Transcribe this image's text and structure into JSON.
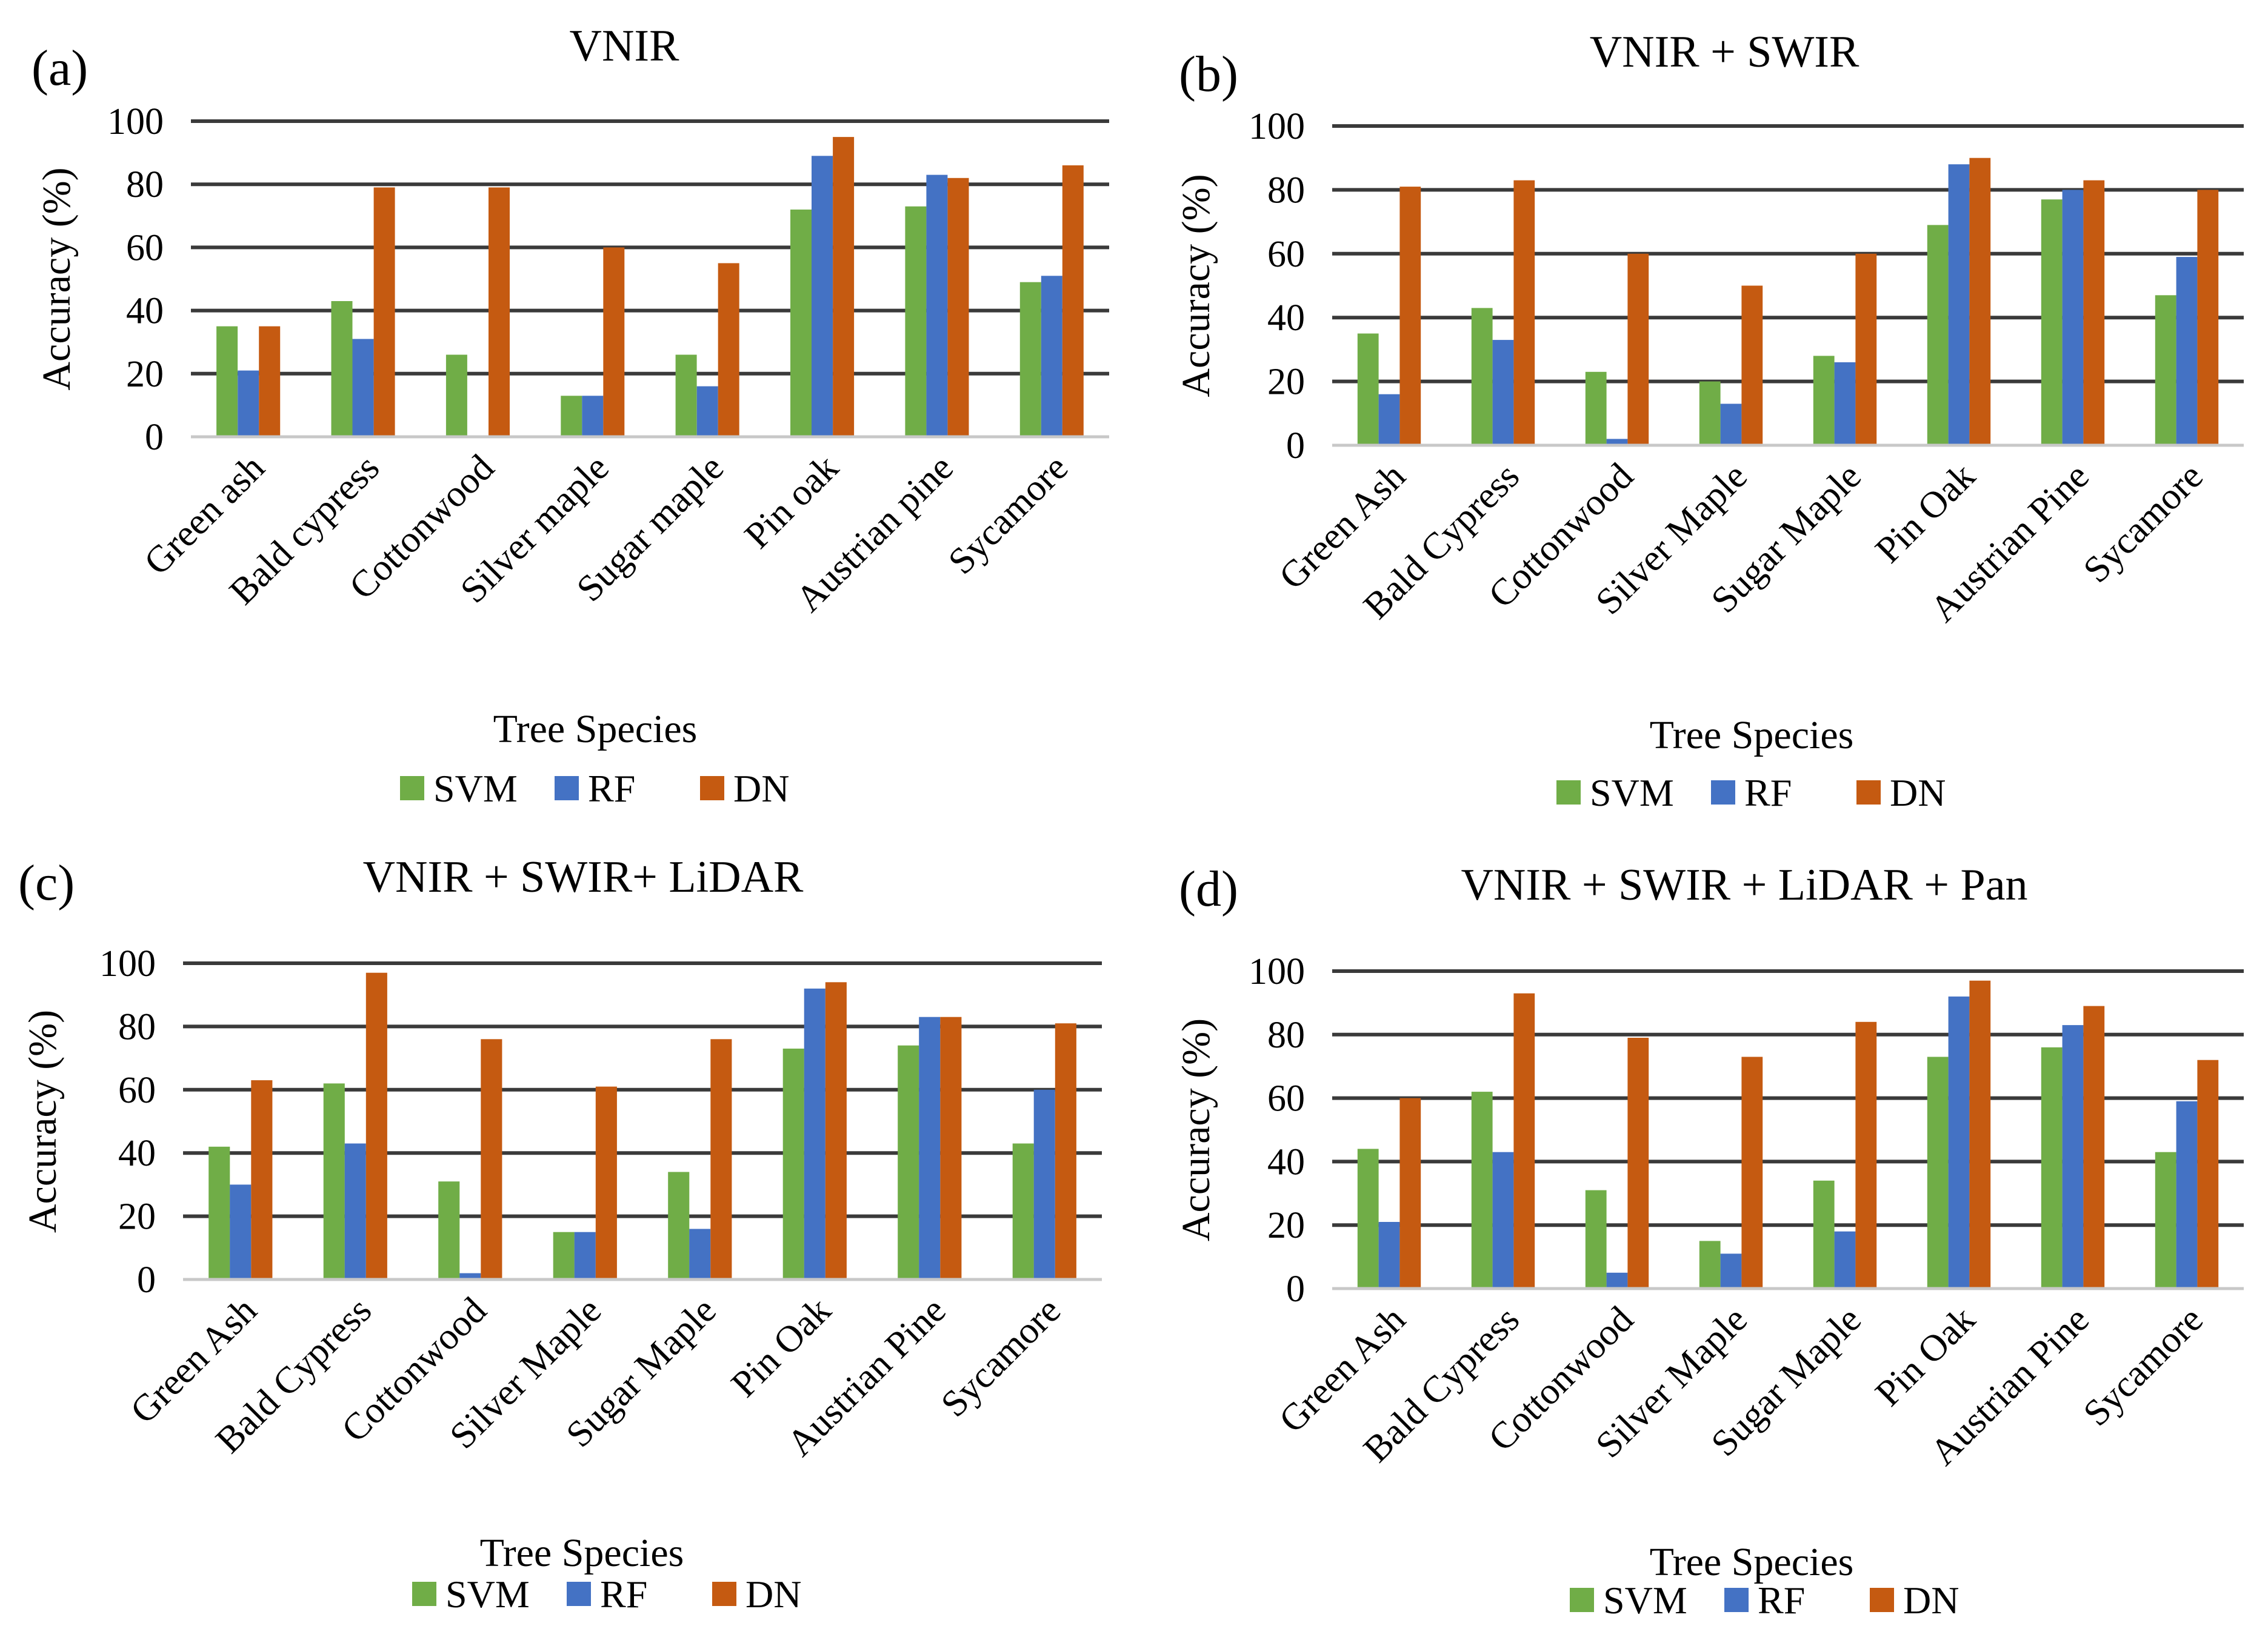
{
  "chart_data": [
    {
      "type": "bar",
      "panel": "(a)",
      "title": "VNIR",
      "xlabel": "Tree Species",
      "ylabel": "Accuracy (%)",
      "ylim": [
        0,
        100
      ],
      "yticks": [
        "0",
        "20",
        "40",
        "60",
        "80",
        "100"
      ],
      "categories": [
        "Green ash",
        "Bald cypress",
        "Cottonwood",
        "Silver maple",
        "Sugar maple",
        "Pin oak",
        "Austrian pine",
        "Sycamore"
      ],
      "series": [
        {
          "name": "SVM",
          "color": "#70ad47",
          "values": [
            35,
            43,
            26,
            13,
            26,
            72,
            73,
            49
          ]
        },
        {
          "name": "RF",
          "color": "#4472c4",
          "values": [
            21,
            31,
            0,
            13,
            16,
            89,
            83,
            51
          ]
        },
        {
          "name": "DN",
          "color": "#c55a11",
          "values": [
            35,
            79,
            79,
            60,
            55,
            95,
            82,
            86
          ]
        }
      ],
      "legend_position": "bottom"
    },
    {
      "type": "bar",
      "panel": "(b)",
      "title": "VNIR + SWIR",
      "xlabel": "Tree Species",
      "ylabel": "Accuracy (%)",
      "ylim": [
        0,
        100
      ],
      "yticks": [
        "0",
        "20",
        "40",
        "60",
        "80",
        "100"
      ],
      "categories": [
        "Green Ash",
        "Bald Cypress",
        "Cottonwood",
        "Silver Maple",
        "Sugar Maple",
        "Pin Oak",
        "Austrian Pine",
        "Sycamore"
      ],
      "series": [
        {
          "name": "SVM",
          "color": "#70ad47",
          "values": [
            35,
            43,
            23,
            20,
            28,
            69,
            77,
            47
          ]
        },
        {
          "name": "RF",
          "color": "#4472c4",
          "values": [
            16,
            33,
            2,
            13,
            26,
            88,
            80,
            59
          ]
        },
        {
          "name": "DN",
          "color": "#c55a11",
          "values": [
            81,
            83,
            60,
            50,
            60,
            90,
            83,
            80
          ]
        }
      ],
      "legend_position": "bottom"
    },
    {
      "type": "bar",
      "panel": "(c)",
      "title": "VNIR + SWIR+ LiDAR",
      "xlabel": "Tree Species",
      "ylabel": "Accuracy (%)",
      "ylim": [
        0,
        100
      ],
      "yticks": [
        "0",
        "20",
        "40",
        "60",
        "80",
        "100"
      ],
      "categories": [
        "Green Ash",
        "Bald Cypress",
        "Cottonwood",
        "Silver Maple",
        "Sugar Maple",
        "Pin Oak",
        "Austrian Pine",
        "Sycamore"
      ],
      "series": [
        {
          "name": "SVM",
          "color": "#70ad47",
          "values": [
            42,
            62,
            31,
            15,
            34,
            73,
            74,
            43
          ]
        },
        {
          "name": "RF",
          "color": "#4472c4",
          "values": [
            30,
            43,
            2,
            15,
            16,
            92,
            83,
            60
          ]
        },
        {
          "name": "DN",
          "color": "#c55a11",
          "values": [
            63,
            97,
            76,
            61,
            76,
            94,
            83,
            81
          ]
        }
      ],
      "legend_position": "bottom"
    },
    {
      "type": "bar",
      "panel": "(d)",
      "title": "VNIR + SWIR + LiDAR + Pan",
      "xlabel": "Tree Species",
      "ylabel": "Accuracy (%)",
      "ylim": [
        0,
        100
      ],
      "yticks": [
        "0",
        "20",
        "40",
        "60",
        "80",
        "100"
      ],
      "categories": [
        "Green Ash",
        "Bald Cypress",
        "Cottonwood",
        "Silver Maple",
        "Sugar Maple",
        "Pin Oak",
        "Austrian Pine",
        "Sycamore"
      ],
      "series": [
        {
          "name": "SVM",
          "color": "#70ad47",
          "values": [
            44,
            62,
            31,
            15,
            34,
            73,
            76,
            43
          ]
        },
        {
          "name": "RF",
          "color": "#4472c4",
          "values": [
            21,
            43,
            5,
            11,
            18,
            92,
            83,
            59
          ]
        },
        {
          "name": "DN",
          "color": "#c55a11",
          "values": [
            60,
            93,
            79,
            73,
            84,
            97,
            89,
            72
          ]
        }
      ],
      "legend_position": "bottom"
    }
  ]
}
